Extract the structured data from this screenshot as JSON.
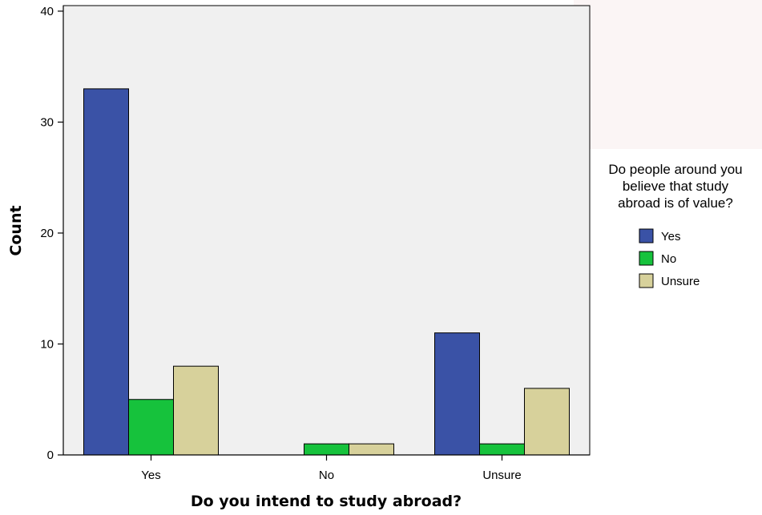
{
  "chart_data": {
    "type": "bar",
    "title": "",
    "xlabel": "Do you intend to study abroad?",
    "ylabel": "Count",
    "categories": [
      "Yes",
      "No",
      "Unsure"
    ],
    "ylim": [
      0,
      40
    ],
    "yticks": [
      0,
      10,
      20,
      30,
      40
    ],
    "grid": false,
    "legend": {
      "title_lines": [
        "Do people around you",
        "believe that study",
        "abroad is of value?"
      ],
      "placement": "right"
    },
    "series": [
      {
        "name": "Yes",
        "color": "#3A52A6",
        "values": [
          33,
          0,
          11
        ]
      },
      {
        "name": "No",
        "color": "#16C23C",
        "values": [
          5,
          1,
          1
        ]
      },
      {
        "name": "Unsure",
        "color": "#D7D19B",
        "values": [
          8,
          1,
          6
        ]
      }
    ],
    "plot_background": "#F0F0F0"
  }
}
